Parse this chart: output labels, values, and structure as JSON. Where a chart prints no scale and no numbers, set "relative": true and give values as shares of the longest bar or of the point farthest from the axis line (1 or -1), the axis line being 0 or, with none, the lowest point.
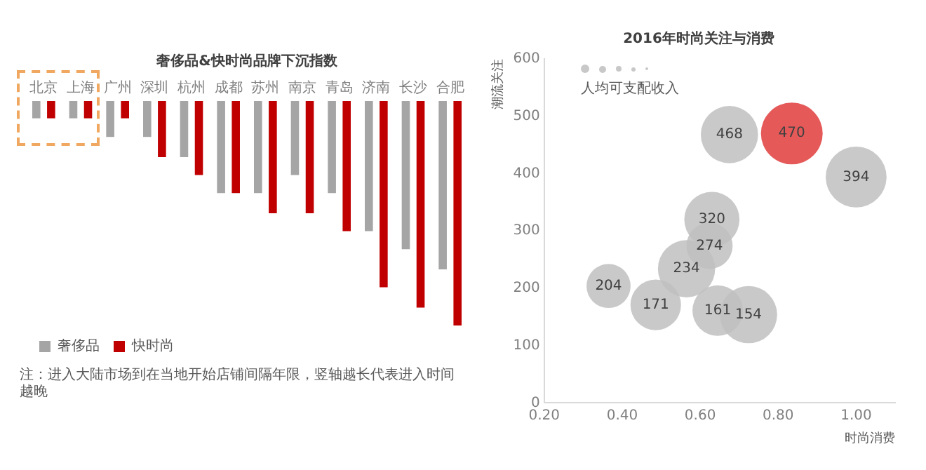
{
  "chart_data": [
    {
      "type": "bar",
      "title": "奢侈品&快时尚品牌下沉指数",
      "relative": true,
      "categories": [
        "北京",
        "上海",
        "广州",
        "深圳",
        "杭州",
        "成都",
        "苏州",
        "南京",
        "青岛",
        "济南",
        "长沙",
        "合肥"
      ],
      "series": [
        {
          "name": "奢侈品",
          "color": "#a5a5a5",
          "values": [
            -0.077,
            -0.077,
            -0.16,
            -0.16,
            -0.25,
            -0.41,
            -0.41,
            -0.33,
            -0.41,
            -0.58,
            -0.66,
            -0.75
          ]
        },
        {
          "name": "快时尚",
          "color": "#c00000",
          "values": [
            -0.077,
            -0.077,
            -0.077,
            -0.25,
            -0.33,
            -0.41,
            -0.5,
            -0.5,
            -0.58,
            -0.83,
            -0.92,
            -1
          ]
        }
      ],
      "legend": "bottom left",
      "grid": false,
      "annotations": [
        "注：进入大陆市场到在当地开始店铺间隔年限，竖轴越长代表进入时间越晚"
      ]
    },
    {
      "type": "bubble",
      "title": "2016年时尚关注与消费",
      "xlabel": "时尚消费",
      "ylabel": "潮流关注",
      "legend_title": "人均可支配收入",
      "x": [
        0.675,
        0.835,
        1.0,
        0.63,
        0.624,
        0.565,
        0.365,
        0.486,
        0.645,
        0.724
      ],
      "values": [
        468,
        470,
        394,
        320,
        274,
        234,
        204,
        171,
        161,
        154
      ],
      "sizes": [
        0.86,
        1,
        0.97,
        0.8,
        0.56,
        0.86,
        0.51,
        0.67,
        0.67,
        0.86
      ],
      "colors": [
        "#bfbfbf",
        "#e03c3c",
        "#bfbfbf",
        "#bfbfbf",
        "#bfbfbf",
        "#bfbfbf",
        "#bfbfbf",
        "#bfbfbf",
        "#bfbfbf",
        "#bfbfbf"
      ],
      "xlim": [
        0.2,
        1.1
      ],
      "xticks": [
        {
          "value": 0.2,
          "label": "0.20"
        },
        {
          "value": 0.4,
          "label": "0.40"
        },
        {
          "value": 0.6,
          "label": "0.60"
        },
        {
          "value": 0.8,
          "label": "0.80"
        },
        {
          "value": 1.0,
          "label": "1.00"
        }
      ],
      "ylim": [
        0,
        600
      ],
      "yticks": [
        0,
        100,
        200,
        300,
        400,
        500,
        600
      ],
      "grid": false,
      "data_labels": true
    }
  ]
}
